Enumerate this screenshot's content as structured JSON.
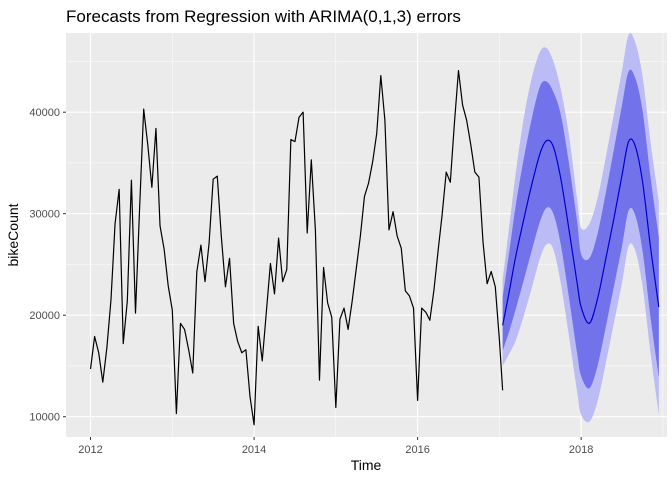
{
  "chart_data": {
    "type": "line",
    "title": "Forecasts from Regression with ARIMA(0,1,3) errors",
    "xlabel": "Time",
    "ylabel": "bikeCount",
    "xlim": [
      2011.7,
      2019.05
    ],
    "ylim": [
      8000,
      47800
    ],
    "x_ticks": [
      2012,
      2014,
      2016,
      2018
    ],
    "x_tick_labels": [
      "2012",
      "2014",
      "2016",
      "2018"
    ],
    "y_ticks": [
      10000,
      20000,
      30000,
      40000
    ],
    "y_tick_labels": [
      "10000",
      "20000",
      "30000",
      "40000"
    ],
    "grid": true,
    "legend": "none",
    "colors": {
      "panel_bg": "#ebebeb",
      "grid_major": "#ffffff",
      "history_line": "#000000",
      "forecast_line": "#0000cc",
      "band_95": "#bbbbf5",
      "band_80": "#7272ea"
    },
    "series": [
      {
        "kind": "history",
        "x": [
          2012.0,
          2012.05,
          2012.1,
          2012.15,
          2012.2,
          2012.25,
          2012.3,
          2012.35,
          2012.4,
          2012.45,
          2012.5,
          2012.55,
          2012.6,
          2012.65,
          2012.7,
          2012.75,
          2012.8,
          2012.85,
          2012.9,
          2012.95,
          2013.0,
          2013.05,
          2013.1,
          2013.15,
          2013.2,
          2013.25,
          2013.3,
          2013.35,
          2013.4,
          2013.45,
          2013.5,
          2013.55,
          2013.6,
          2013.65,
          2013.7,
          2013.75,
          2013.8,
          2013.85,
          2013.9,
          2013.95,
          2014.0,
          2014.05,
          2014.1,
          2014.15,
          2014.2,
          2014.25,
          2014.3,
          2014.35,
          2014.4,
          2014.45,
          2014.5,
          2014.55,
          2014.6,
          2014.65,
          2014.7,
          2014.75,
          2014.8,
          2014.85,
          2014.9,
          2014.95,
          2015.0,
          2015.05,
          2015.1,
          2015.15,
          2015.2,
          2015.25,
          2015.3,
          2015.35,
          2015.4,
          2015.45,
          2015.5,
          2015.55,
          2015.6,
          2015.65,
          2015.7,
          2015.75,
          2015.8,
          2015.85,
          2015.9,
          2015.95,
          2016.0,
          2016.05,
          2016.1,
          2016.15,
          2016.2,
          2016.25,
          2016.3,
          2016.35,
          2016.4,
          2016.45,
          2016.5,
          2016.55,
          2016.6,
          2016.65,
          2016.7,
          2016.75,
          2016.8,
          2016.85,
          2016.9,
          2016.95,
          2017.0,
          2017.04
        ],
        "values": [
          14700,
          17900,
          16300,
          13400,
          16800,
          21500,
          29000,
          32400,
          17200,
          21400,
          33300,
          20200,
          30500,
          40300,
          36800,
          32600,
          38400,
          28800,
          26500,
          22900,
          20500,
          10300,
          19200,
          18600,
          16600,
          14300,
          24300,
          26900,
          23300,
          27100,
          33400,
          33700,
          27700,
          22800,
          25600,
          19200,
          17400,
          16300,
          16600,
          12000,
          9200,
          18900,
          15500,
          20300,
          25100,
          22100,
          27600,
          23300,
          24500,
          37300,
          37100,
          39500,
          40000,
          28100,
          35300,
          28400,
          13600,
          24700,
          21200,
          19800,
          10900,
          19600,
          20700,
          18600,
          21400,
          24600,
          27800,
          31700,
          33000,
          35100,
          37900,
          43600,
          39200,
          28400,
          30200,
          27800,
          26600,
          22400,
          21900,
          20700,
          11600,
          20700,
          20300,
          19500,
          22500,
          26300,
          29900,
          34100,
          33100,
          38900,
          44100,
          40700,
          39200,
          36800,
          34100,
          33600,
          27200,
          23100,
          24300,
          22800,
          17600,
          12600
        ]
      },
      {
        "kind": "forecast",
        "x": [
          2017.04,
          2017.12,
          2017.2,
          2017.3,
          2017.4,
          2017.5,
          2017.58,
          2017.66,
          2017.75,
          2017.85,
          2017.95,
          2018.0,
          2018.1,
          2018.2,
          2018.3,
          2018.4,
          2018.5,
          2018.58,
          2018.66,
          2018.75,
          2018.85,
          2018.95
        ],
        "mean": [
          19000,
          22300,
          25800,
          29500,
          33000,
          36000,
          37200,
          36600,
          33500,
          28500,
          23200,
          20800,
          19200,
          21600,
          25500,
          29500,
          33800,
          37100,
          36700,
          33200,
          26600,
          20800
        ],
        "lo80": [
          16500,
          18400,
          20600,
          23500,
          26500,
          29300,
          30600,
          30000,
          27000,
          21800,
          16300,
          14000,
          12800,
          15000,
          18800,
          22800,
          26800,
          30300,
          29900,
          26400,
          19700,
          13900
        ],
        "hi80": [
          21700,
          26200,
          30800,
          35500,
          39500,
          42600,
          43000,
          42000,
          39800,
          35000,
          29300,
          26000,
          25600,
          28000,
          32000,
          36300,
          40700,
          44000,
          43400,
          40200,
          33500,
          27700
        ],
        "lo95": [
          15000,
          16200,
          17500,
          20000,
          22800,
          25700,
          27000,
          26500,
          23200,
          18000,
          12500,
          10200,
          9500,
          11500,
          15200,
          19200,
          23200,
          26800,
          26400,
          22900,
          16200,
          10200
        ],
        "hi95": [
          23500,
          28700,
          34000,
          39500,
          43500,
          46000,
          46300,
          45000,
          42300,
          37800,
          31500,
          28600,
          29000,
          31500,
          35500,
          39800,
          44100,
          47600,
          46900,
          43600,
          37000,
          31200
        ]
      }
    ]
  }
}
